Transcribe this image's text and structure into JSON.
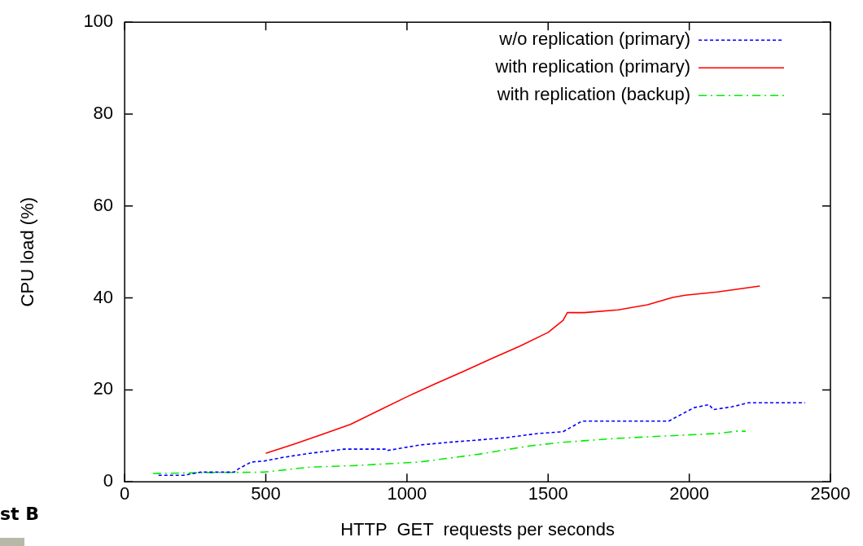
{
  "chart_data": {
    "type": "line",
    "xlabel": "HTTP  GET  requests per seconds",
    "ylabel": "CPU load (%)",
    "xlim": [
      0,
      2500
    ],
    "ylim": [
      0,
      100
    ],
    "xticks": [
      0,
      500,
      1000,
      1500,
      2000,
      2500
    ],
    "yticks": [
      0,
      20,
      40,
      60,
      80,
      100
    ],
    "legend": "top right",
    "marker": "none",
    "annotations": [
      "st B"
    ],
    "series": [
      {
        "name": "w/o replication (primary)",
        "color": "#0000ff",
        "line_style": "dotted",
        "x": [
          120,
          209,
          269,
          388,
          403,
          448,
          493,
          560,
          657,
          777,
          926,
          930,
          1045,
          1150,
          1254,
          1350,
          1464,
          1553,
          1620,
          1700,
          1800,
          1927,
          2016,
          2070,
          2085,
          2150,
          2210,
          2300,
          2410
        ],
        "values": [
          1.4,
          1.4,
          2.1,
          2.1,
          2.8,
          4.3,
          4.5,
          5.3,
          6.2,
          7.1,
          7.1,
          6.8,
          8.0,
          8.6,
          9.1,
          9.6,
          10.5,
          10.9,
          13.2,
          13.2,
          13.2,
          13.2,
          16.1,
          16.8,
          15.7,
          16.3,
          17.2,
          17.2,
          17.2
        ]
      },
      {
        "name": "with replication (primary)",
        "color": "#ff0000",
        "line_style": "solid",
        "x": [
          500,
          600,
          700,
          800,
          900,
          1000,
          1100,
          1200,
          1300,
          1400,
          1500,
          1553,
          1568,
          1628,
          1748,
          1852,
          1941,
          1986,
          2100,
          2250
        ],
        "values": [
          6.2,
          8.2,
          10.3,
          12.5,
          15.5,
          18.5,
          21.3,
          24,
          26.8,
          29.5,
          32.5,
          35.1,
          36.8,
          36.8,
          37.4,
          38.5,
          40.1,
          40.6,
          41.3,
          42.6
        ]
      },
      {
        "name": "with replication (backup)",
        "color": "#00ee00",
        "line_style": "dashed",
        "x": [
          100,
          300,
          493,
          657,
          806,
          1045,
          1254,
          1344,
          1434,
          1553,
          1732,
          1927,
          2100,
          2166,
          2200
        ],
        "values": [
          1.8,
          2.0,
          2.1,
          3.2,
          3.5,
          4.3,
          6.0,
          6.9,
          7.8,
          8.6,
          9.4,
          10.0,
          10.5,
          11.0,
          11.0
        ]
      }
    ]
  }
}
